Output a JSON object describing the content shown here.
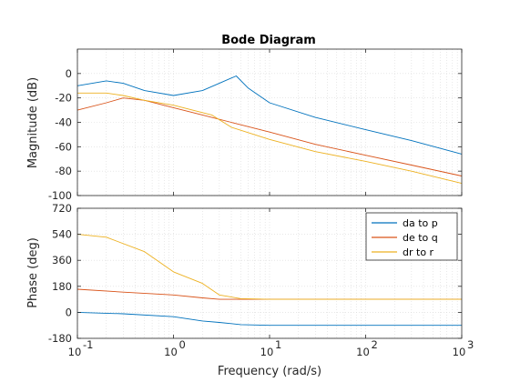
{
  "chart_data": {
    "type": "line",
    "title": "Bode Diagram",
    "xlabel": "Frequency  (rad/s)",
    "x_scale": "log",
    "xlim": [
      0.1,
      1000
    ],
    "x_ticks": [
      0.1,
      1,
      10,
      100,
      1000
    ],
    "x_tick_labels": [
      {
        "base": "10",
        "exp": "-1"
      },
      {
        "base": "10",
        "exp": "0"
      },
      {
        "base": "10",
        "exp": "1"
      },
      {
        "base": "10",
        "exp": "2"
      },
      {
        "base": "10",
        "exp": "3"
      }
    ],
    "grid": true,
    "legend_position": "top-right (phase panel)",
    "series_styles": [
      {
        "name": "da to p",
        "color": "#0072BD"
      },
      {
        "name": "de to q",
        "color": "#D95319"
      },
      {
        "name": "dr to r",
        "color": "#EDB120"
      }
    ],
    "magnitude": {
      "ylabel": "Magnitude (dB)",
      "ylim": [
        -100,
        20
      ],
      "y_ticks": [
        -100,
        -80,
        -60,
        -40,
        -20,
        0
      ],
      "series": [
        {
          "name": "da to p",
          "x": [
            0.1,
            0.2,
            0.3,
            0.5,
            1,
            2,
            3,
            4.5,
            6,
            10,
            30,
            100,
            300,
            1000
          ],
          "y": [
            -10,
            -6,
            -8,
            -14,
            -18,
            -14,
            -8,
            -2,
            -12,
            -24,
            -36,
            -46,
            -55,
            -66
          ]
        },
        {
          "name": "de to q",
          "x": [
            0.1,
            0.2,
            0.3,
            0.5,
            1,
            2,
            2.5,
            4,
            10,
            30,
            100,
            300,
            1000
          ],
          "y": [
            -30,
            -24,
            -20,
            -22,
            -28,
            -34,
            -36,
            -40,
            -48,
            -58,
            -67,
            -75,
            -84
          ]
        },
        {
          "name": "dr to r",
          "x": [
            0.1,
            0.2,
            0.3,
            0.5,
            1,
            2,
            2.5,
            4,
            10,
            30,
            100,
            300,
            1000
          ],
          "y": [
            -16,
            -16,
            -18,
            -22,
            -26,
            -32,
            -34,
            -44,
            -54,
            -64,
            -72,
            -80,
            -90
          ]
        }
      ]
    },
    "phase": {
      "ylabel": "Phase (deg)",
      "ylim": [
        -180,
        720
      ],
      "y_ticks": [
        -180,
        0,
        180,
        360,
        540,
        720
      ],
      "series": [
        {
          "name": "da to p",
          "x": [
            0.1,
            0.3,
            1,
            2,
            3,
            5,
            10,
            30,
            100,
            1000
          ],
          "y": [
            0,
            -10,
            -30,
            -60,
            -70,
            -85,
            -90,
            -90,
            -90,
            -90
          ]
        },
        {
          "name": "de to q",
          "x": [
            0.1,
            0.3,
            1,
            2,
            3,
            5,
            10,
            100,
            1000
          ],
          "y": [
            160,
            140,
            120,
            100,
            90,
            90,
            90,
            90,
            90
          ]
        },
        {
          "name": "dr to r",
          "x": [
            0.1,
            0.2,
            0.5,
            1,
            2,
            3,
            5,
            10,
            100,
            1000
          ],
          "y": [
            540,
            520,
            420,
            280,
            200,
            120,
            95,
            90,
            90,
            90
          ]
        }
      ]
    }
  }
}
